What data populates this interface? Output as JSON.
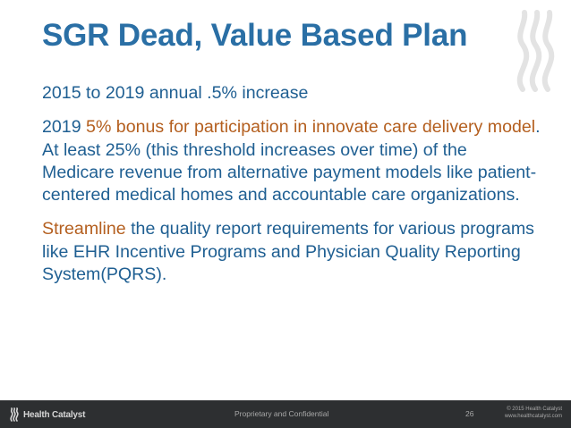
{
  "slide": {
    "title": "SGR Dead, Value Based Plan",
    "paragraphs": {
      "p1": "2015 to 2019 annual .5% increase",
      "p2": {
        "lead": "2019 ",
        "accent": "5% bonus for participation in innovate care delivery model",
        "rest": ". At least 25% (this threshold increases over time) of the Medicare revenue from alternative payment models like patient-centered medical homes and accountable care organizations."
      },
      "p3": {
        "accent": "Streamline",
        "rest": " the quality report requirements for various programs like EHR Incentive Programs and Physician Quality Reporting System(PQRS)."
      }
    }
  },
  "footer": {
    "logo_text": "Health Catalyst",
    "center_text": "Proprietary and Confidential",
    "page_number": "26",
    "copyright": "© 2015 Health Catalyst",
    "website": "www.healthcatalyst.com"
  },
  "colors": {
    "title": "#2a6fa5",
    "body": "#1f5f92",
    "accent": "#b45f1f",
    "footer_bg": "#2d2f31"
  },
  "icons": {
    "header_logo": "flame-icon",
    "footer_logo": "flame-icon"
  }
}
